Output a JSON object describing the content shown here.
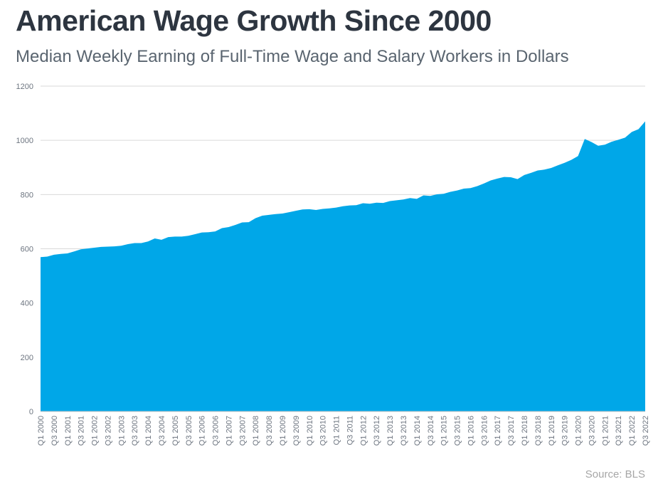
{
  "title": "American Wage Growth Since 2000",
  "subtitle": "Median Weekly Earning of Full-Time Wage and Salary Workers in Dollars",
  "source": "Source: BLS",
  "chart_data": {
    "type": "area",
    "title": "American Wage Growth Since 2000",
    "subtitle": "Median Weekly Earning of Full-Time Wage and Salary Workers in Dollars",
    "xlabel": "",
    "ylabel": "",
    "ylim": [
      0,
      1200
    ],
    "yticks": [
      0,
      200,
      400,
      600,
      800,
      1000,
      1200
    ],
    "grid": true,
    "legend": "none",
    "colors": {
      "area": "#00a7e8",
      "grid": "#d9d9d9",
      "axis": "#bfbfbf"
    },
    "tick_labels": [
      "Q1 2000",
      "Q3 2000",
      "Q1 2001",
      "Q3 2001",
      "Q1 2002",
      "Q3 2002",
      "Q1 2003",
      "Q3 2003",
      "Q1 2004",
      "Q3 2004",
      "Q1 2005",
      "Q3 2005",
      "Q1 2006",
      "Q3 2006",
      "Q1 2007",
      "Q3 2007",
      "Q1 2008",
      "Q3 2008",
      "Q1 2009",
      "Q3 2009",
      "Q1 2010",
      "Q3 2010",
      "Q1 2011",
      "Q3 2011",
      "Q1 2012",
      "Q3 2012",
      "Q1 2013",
      "Q3 2013",
      "Q1 2014",
      "Q3 2014",
      "Q1 2015",
      "Q3 2015",
      "Q1 2016",
      "Q3 2016",
      "Q1 2017",
      "Q3 2017",
      "Q1 2018",
      "Q3 2018",
      "Q1 2019",
      "Q3 2019",
      "Q1 2020",
      "Q3 2020",
      "Q1 2021",
      "Q3 2021",
      "Q1 2022",
      "Q3 2022"
    ],
    "categories": [
      "Q1 2000",
      "Q2 2000",
      "Q3 2000",
      "Q4 2000",
      "Q1 2001",
      "Q2 2001",
      "Q3 2001",
      "Q4 2001",
      "Q1 2002",
      "Q2 2002",
      "Q3 2002",
      "Q4 2002",
      "Q1 2003",
      "Q2 2003",
      "Q3 2003",
      "Q4 2003",
      "Q1 2004",
      "Q2 2004",
      "Q3 2004",
      "Q4 2004",
      "Q1 2005",
      "Q2 2005",
      "Q3 2005",
      "Q4 2005",
      "Q1 2006",
      "Q2 2006",
      "Q3 2006",
      "Q4 2006",
      "Q1 2007",
      "Q2 2007",
      "Q3 2007",
      "Q4 2007",
      "Q1 2008",
      "Q2 2008",
      "Q3 2008",
      "Q4 2008",
      "Q1 2009",
      "Q2 2009",
      "Q3 2009",
      "Q4 2009",
      "Q1 2010",
      "Q2 2010",
      "Q3 2010",
      "Q4 2010",
      "Q1 2011",
      "Q2 2011",
      "Q3 2011",
      "Q4 2011",
      "Q1 2012",
      "Q2 2012",
      "Q3 2012",
      "Q4 2012",
      "Q1 2013",
      "Q2 2013",
      "Q3 2013",
      "Q4 2013",
      "Q1 2014",
      "Q2 2014",
      "Q3 2014",
      "Q4 2014",
      "Q1 2015",
      "Q2 2015",
      "Q3 2015",
      "Q4 2015",
      "Q1 2016",
      "Q2 2016",
      "Q3 2016",
      "Q4 2016",
      "Q1 2017",
      "Q2 2017",
      "Q3 2017",
      "Q4 2017",
      "Q1 2018",
      "Q2 2018",
      "Q3 2018",
      "Q4 2018",
      "Q1 2019",
      "Q2 2019",
      "Q3 2019",
      "Q4 2019",
      "Q1 2020",
      "Q2 2020",
      "Q3 2020",
      "Q4 2020",
      "Q1 2021",
      "Q2 2021",
      "Q3 2021",
      "Q4 2021",
      "Q1 2022",
      "Q2 2022",
      "Q3 2022"
    ],
    "values": [
      569,
      571,
      578,
      581,
      583,
      590,
      598,
      601,
      604,
      607,
      608,
      609,
      611,
      617,
      621,
      621,
      627,
      638,
      633,
      643,
      645,
      645,
      648,
      654,
      660,
      661,
      664,
      676,
      680,
      688,
      697,
      698,
      713,
      722,
      725,
      728,
      730,
      735,
      740,
      745,
      746,
      743,
      747,
      749,
      752,
      757,
      760,
      761,
      768,
      766,
      770,
      769,
      776,
      779,
      782,
      787,
      784,
      797,
      795,
      801,
      803,
      810,
      815,
      822,
      824,
      831,
      841,
      852,
      859,
      865,
      864,
      857,
      872,
      880,
      889,
      892,
      898,
      908,
      917,
      928,
      942,
      1005,
      994,
      980,
      984,
      995,
      1002,
      1010,
      1031,
      1041,
      1070
    ]
  }
}
